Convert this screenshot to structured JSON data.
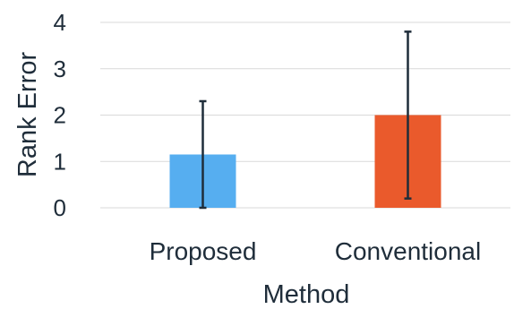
{
  "chart_data": {
    "type": "bar",
    "categories": [
      "Proposed",
      "Conventional"
    ],
    "values": [
      1.15,
      2.0
    ],
    "error_bars": [
      {
        "low": 0.0,
        "high": 2.3
      },
      {
        "low": 0.2,
        "high": 3.8
      }
    ],
    "colors": [
      "#56aef0",
      "#ea5a2c"
    ],
    "xlabel": "Method",
    "ylabel": "Rank Error",
    "ylim": [
      0,
      4
    ],
    "yticks": [
      0,
      1,
      2,
      3,
      4
    ],
    "grid": true,
    "legend": "none"
  }
}
